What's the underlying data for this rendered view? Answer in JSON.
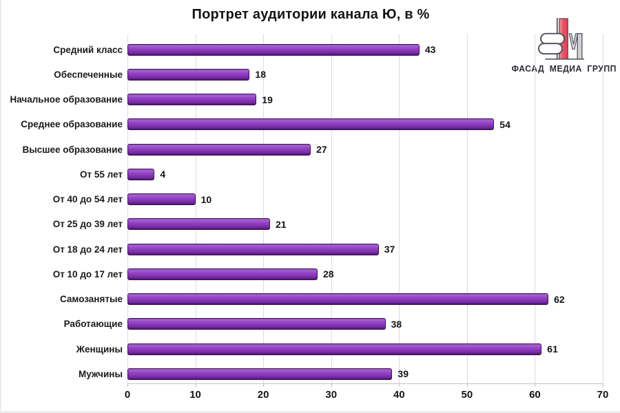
{
  "chart_data": {
    "type": "bar",
    "orientation": "horizontal",
    "title": "Портрет аудитории канала Ю, в %",
    "categories": [
      "Средний класс",
      "Обеспеченные",
      "Начальное образование",
      "Среднее образование",
      "Высшее образование",
      "От 55 лет",
      "От 40 до 54 лет",
      "От 25 до 39 лет",
      "От 18 до 24 лет",
      "От 10 до 17 лет",
      "Самозанятые",
      "Работающие",
      "Женщины",
      "Мужчины"
    ],
    "values": [
      43,
      18,
      19,
      54,
      27,
      4,
      10,
      21,
      37,
      28,
      62,
      38,
      61,
      39
    ],
    "xlabel": "",
    "ylabel": "",
    "xlim": [
      0,
      70
    ],
    "x_ticks": [
      0,
      10,
      20,
      30,
      40,
      50,
      60,
      70
    ],
    "grid": "vertical",
    "legend": "none",
    "value_labels": true,
    "bar_color": "#8B3ABD",
    "bar_border_color": "#3F0F58"
  },
  "logo": {
    "text": "ФАСАД МЕДИА ГРУПП",
    "colors": {
      "red": "#EA5164",
      "red_light": "#F29AA4",
      "gray": "#D2D2D6",
      "outline": "#4A4A55",
      "text": "#2B2B34"
    }
  }
}
